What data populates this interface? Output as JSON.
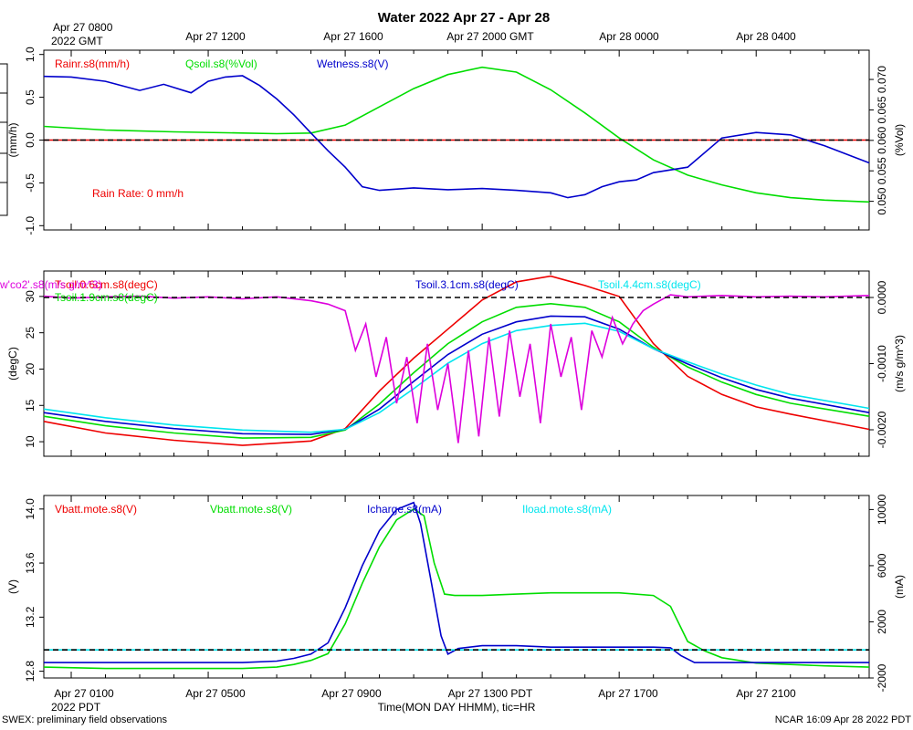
{
  "title": "Water 2022 Apr 27 - Apr 28",
  "top_axis": {
    "first_label": [
      "Apr 27 0800",
      "2022 GMT"
    ],
    "labels": [
      "Apr 27 1200",
      "Apr 27 1600",
      "Apr 27 2000 GMT",
      "Apr 28 0000",
      "Apr 28 0400"
    ]
  },
  "bottom_axis": {
    "labels": [
      "Apr 27 0100",
      "Apr 27 0500",
      "Apr 27 0900",
      "Apr 27 1300 PDT",
      "Apr 27 1700",
      "Apr 27 2100"
    ],
    "year_label": "2022 PDT",
    "caption": "Time(MON DAY HHMM), tic=HR"
  },
  "footer": {
    "left": "SWEX: preliminary field observations",
    "right": "NCAR 16:09 Apr 28 2022 PDT"
  },
  "colors": {
    "red": "#ee0000",
    "green": "#00dd00",
    "blue": "#0000cc",
    "cyan": "#00e5ee",
    "magenta": "#dd00dd",
    "black": "#000000"
  },
  "chart_data": [
    {
      "type": "line",
      "panel": "water",
      "x_unit": "hours PDT since Apr 27 0000",
      "xlim": [
        0.2,
        24.3
      ],
      "left_axis": {
        "label": "(mm/h)",
        "ylim": [
          -1.05,
          1.05
        ],
        "ticks": [
          "1.0",
          "0.5",
          "0.0",
          "-0.5",
          "-1.0"
        ]
      },
      "right_axis": {
        "label": "(%Vol)",
        "ylim": [
          0.0453,
          0.0748
        ],
        "ticks": [
          "0.070",
          "0.065",
          "0.060",
          "0.055",
          "0.050"
        ]
      },
      "reference_line": 0.0,
      "annotation": "Rain Rate: 0 mm/h",
      "series": [
        {
          "name": "Rainr.s8(mm/h)",
          "axis": "left",
          "color": "red",
          "x": [
            0.2,
            24.3
          ],
          "y": [
            0.0,
            0.0
          ]
        },
        {
          "name": "Qsoil.s8(%Vol)",
          "axis": "right",
          "color": "green",
          "x": [
            0.2,
            2,
            4,
            6,
            7,
            8,
            9,
            10,
            11,
            12,
            13,
            14,
            15,
            16,
            17,
            18,
            19,
            20,
            21,
            22,
            23,
            24.3
          ],
          "y": [
            0.0623,
            0.0617,
            0.0614,
            0.0612,
            0.0611,
            0.0612,
            0.0625,
            0.0655,
            0.0685,
            0.0708,
            0.072,
            0.0712,
            0.0683,
            0.0645,
            0.0604,
            0.0568,
            0.0543,
            0.0527,
            0.0514,
            0.0506,
            0.0502,
            0.0499
          ]
        },
        {
          "name": "Wetness.s8(V)",
          "axis": "right",
          "color": "blue",
          "x": [
            0.2,
            1,
            2,
            3,
            3.7,
            4.5,
            5,
            5.5,
            6,
            6.5,
            7,
            7.5,
            8,
            8.5,
            9,
            9.5,
            10,
            11,
            12,
            13,
            14,
            15,
            15.5,
            16,
            16.5,
            17,
            17.5,
            18,
            19,
            20,
            21,
            22,
            23,
            24.3
          ],
          "y": [
            0.0705,
            0.0704,
            0.0697,
            0.0682,
            0.0692,
            0.0678,
            0.0697,
            0.0704,
            0.0706,
            0.069,
            0.0668,
            0.0642,
            0.0612,
            0.0583,
            0.0556,
            0.0524,
            0.0518,
            0.0522,
            0.0519,
            0.0521,
            0.0518,
            0.0514,
            0.0506,
            0.0511,
            0.0524,
            0.0532,
            0.0535,
            0.0547,
            0.0556,
            0.0604,
            0.0613,
            0.0609,
            0.0591,
            0.0563
          ]
        }
      ]
    },
    {
      "type": "line",
      "panel": "soil",
      "x_unit": "hours PDT since Apr 27 0000",
      "xlim": [
        0.2,
        24.3
      ],
      "left_axis": {
        "label": "(degC)",
        "ylim": [
          8,
          33.5
        ],
        "ticks": [
          "30",
          "25",
          "20",
          "15",
          "10"
        ]
      },
      "right_axis": {
        "label": "(m/s g/m^3)",
        "ylim": [
          -0.0024,
          0.0004
        ],
        "ticks": [
          "0.0000",
          "-0.0010",
          "-0.0020"
        ]
      },
      "reference_line": 0.0,
      "series": [
        {
          "name": "Tsoil.0.6cm.s8(degC)",
          "axis": "left",
          "color": "red",
          "x": [
            0.2,
            2,
            4,
            6,
            8,
            9,
            10,
            11,
            12,
            13,
            14,
            15,
            16,
            17,
            18,
            19,
            20,
            21,
            22,
            24.3
          ],
          "y": [
            12.8,
            11.2,
            10.2,
            9.5,
            10.1,
            11.8,
            17,
            21.5,
            25.5,
            29.5,
            32.0,
            32.8,
            31.5,
            30.0,
            23.5,
            19.0,
            16.5,
            14.8,
            13.8,
            11.7
          ]
        },
        {
          "name": "Tsoil.1.9cm.s8(degC)",
          "axis": "left",
          "color": "green",
          "x": [
            0.2,
            2,
            4,
            6,
            8,
            9,
            10,
            11,
            12,
            13,
            14,
            15,
            16,
            17,
            18,
            19,
            20,
            21,
            22,
            24.3
          ],
          "y": [
            13.5,
            12.2,
            11.2,
            10.5,
            10.6,
            11.6,
            15.2,
            19.5,
            23.5,
            26.5,
            28.5,
            29,
            28.5,
            26.5,
            23,
            20.3,
            18.2,
            16.5,
            15.3,
            13.5
          ]
        },
        {
          "name": "Tsoil.3.1cm.s8(degC)",
          "axis": "left",
          "color": "blue",
          "x": [
            0.2,
            2,
            4,
            6,
            8,
            9,
            10,
            11,
            12,
            13,
            14,
            15,
            16,
            17,
            18,
            19,
            20,
            21,
            22,
            24.3
          ],
          "y": [
            14,
            12.8,
            11.8,
            11.1,
            11,
            11.7,
            14.5,
            18.3,
            22,
            24.8,
            26.5,
            27.3,
            27.2,
            25.5,
            22.8,
            20.7,
            18.8,
            17.2,
            16,
            14
          ]
        },
        {
          "name": "Tsoil.4.4cm.s8(degC)",
          "axis": "left",
          "color": "cyan",
          "x": [
            0.2,
            2,
            4,
            6,
            8,
            9,
            10,
            11,
            12,
            13,
            14,
            15,
            16,
            17,
            18,
            19,
            20,
            21,
            22,
            24.3
          ],
          "y": [
            14.5,
            13.3,
            12.3,
            11.6,
            11.3,
            11.7,
            14,
            17.3,
            20.8,
            23.5,
            25.3,
            26,
            26.3,
            25.2,
            22.8,
            21,
            19.3,
            17.8,
            16.5,
            14.6
          ]
        },
        {
          "name": "w'co2'.s8(m/s g/m^3)",
          "axis": "right",
          "color": "magenta",
          "x": [
            0.2,
            1,
            2,
            3,
            4,
            5,
            6,
            7,
            8,
            8.5,
            9,
            9.3,
            9.6,
            9.9,
            10.2,
            10.5,
            10.8,
            11.1,
            11.4,
            11.7,
            12,
            12.3,
            12.6,
            12.9,
            13.2,
            13.5,
            13.8,
            14.1,
            14.4,
            14.7,
            15,
            15.3,
            15.6,
            15.9,
            16.2,
            16.5,
            16.8,
            17.1,
            17.4,
            17.7,
            18,
            18.5,
            19,
            20,
            21,
            22,
            23,
            24.3
          ],
          "y": [
            2e-05,
            -1e-05,
            1e-05,
            2e-05,
            -1e-05,
            1e-05,
            -2e-05,
            1e-05,
            -5e-05,
            -0.0001,
            -0.0002,
            -0.0008,
            -0.0004,
            -0.0012,
            -0.0006,
            -0.0016,
            -0.0009,
            -0.0019,
            -0.0007,
            -0.0017,
            -0.001,
            -0.0022,
            -0.0008,
            -0.0021,
            -0.0006,
            -0.0018,
            -0.0005,
            -0.0015,
            -0.0007,
            -0.0019,
            -0.0004,
            -0.0012,
            -0.0006,
            -0.0017,
            -0.0005,
            -0.0009,
            -0.0003,
            -0.0007,
            -0.0004,
            -0.0002,
            -0.0001,
            4e-05,
            1e-05,
            3e-05,
            1e-05,
            2e-05,
            1e-05,
            3e-05
          ]
        }
      ]
    },
    {
      "type": "line",
      "panel": "power",
      "x_unit": "hours PDT since Apr 27 0000",
      "xlim": [
        0.2,
        24.3
      ],
      "left_axis": {
        "label": "(V)",
        "ylim": [
          12.75,
          14.1
        ],
        "ticks": [
          "14.0",
          "13.6",
          "13.2",
          "12.8"
        ]
      },
      "right_axis": {
        "label": "(mA)",
        "ylim": [
          -2000,
          11000
        ],
        "ticks": [
          "10000",
          "6000",
          "2000",
          "-2000"
        ]
      },
      "reference_line": 0,
      "series": [
        {
          "name": "Vbatt.mote.s8(V)",
          "axis": "left",
          "color": "red",
          "x": [],
          "y": []
        },
        {
          "name": "Vbatt.mote.s8(V)",
          "axis": "left",
          "color": "green",
          "x": [
            0.2,
            2,
            4,
            6,
            7,
            7.5,
            8,
            8.5,
            9,
            9.5,
            10,
            10.5,
            11,
            11.3,
            11.6,
            11.9,
            12.2,
            12.5,
            13,
            14,
            15,
            16,
            17,
            18,
            18.5,
            19,
            19.5,
            20,
            21,
            22,
            23,
            24.3
          ],
          "y": [
            12.83,
            12.82,
            12.82,
            12.82,
            12.83,
            12.85,
            12.88,
            12.93,
            13.15,
            13.45,
            13.72,
            13.92,
            14.0,
            13.95,
            13.6,
            13.37,
            13.36,
            13.36,
            13.36,
            13.37,
            13.38,
            13.38,
            13.38,
            13.36,
            13.28,
            13.02,
            12.95,
            12.9,
            12.86,
            12.85,
            12.84,
            12.83
          ]
        },
        {
          "name": "Icharge.s8(mA)",
          "axis": "right",
          "color": "blue",
          "x": [
            0.2,
            2,
            4,
            6,
            7,
            7.5,
            8,
            8.5,
            9,
            9.5,
            10,
            10.5,
            11,
            11.2,
            11.5,
            11.8,
            12,
            12.3,
            13,
            14,
            15,
            16,
            17,
            18,
            18.5,
            18.8,
            19.2,
            20,
            21,
            22,
            23,
            24.3
          ],
          "y": [
            -900,
            -900,
            -900,
            -900,
            -800,
            -600,
            -300,
            500,
            3000,
            6000,
            8500,
            10000,
            10500,
            9000,
            5000,
            1000,
            -300,
            100,
            300,
            300,
            200,
            200,
            200,
            200,
            150,
            -400,
            -900,
            -900,
            -900,
            -900,
            -900,
            -900
          ]
        },
        {
          "name": "Iload.mote.s8(mA)",
          "axis": "right",
          "color": "cyan",
          "x": [
            0.2,
            24.3
          ],
          "y": [
            0,
            0
          ]
        }
      ]
    }
  ]
}
